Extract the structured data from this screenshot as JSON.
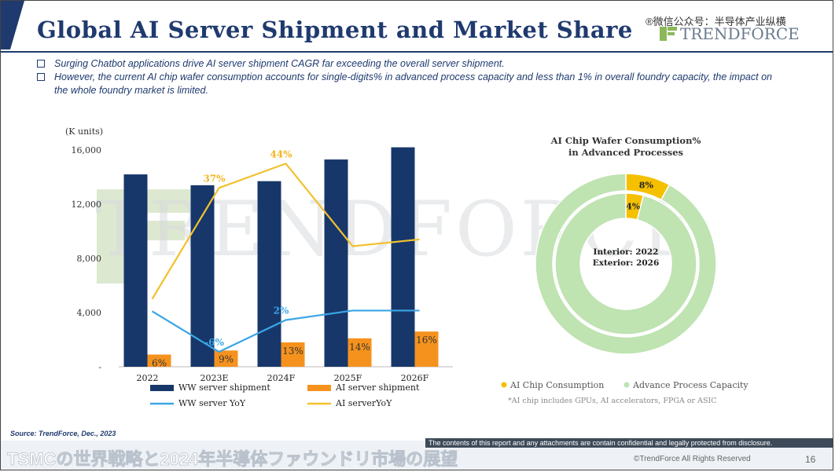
{
  "header": {
    "title": "Global AI Server Shipment and Market Share",
    "wechat_tag": "®微信公众号：半导体产业纵横",
    "logo_text": "TRENDFORCE"
  },
  "bullets": [
    "Surging Chatbot applications drive AI server shipment CAGR far exceeding the overall server shipment.",
    "However, the current AI chip wafer consumption accounts for single-digits% in advanced process capacity and less than 1% in overall foundry capacity, the impact on the whole foundry market is limited."
  ],
  "watermark": "TRENDFORCE",
  "chart_data": [
    {
      "type": "bar",
      "unit_label": "(K units)",
      "categories": [
        "2022",
        "2023E",
        "2024F",
        "2025F",
        "2026F"
      ],
      "ylim": [
        0,
        16000
      ],
      "yticks": [
        "16,000",
        "12,000",
        "8,000",
        "4,000",
        "-"
      ],
      "ytick_values": [
        16000,
        12000,
        8000,
        4000,
        0
      ],
      "series": [
        {
          "name": "WW server shipment",
          "kind": "bar",
          "color": "#17376b",
          "values": [
            14200,
            13400,
            13700,
            15300,
            16200
          ]
        },
        {
          "name": "AI server shipment",
          "kind": "bar",
          "color": "#f5921e",
          "values": [
            900,
            1200,
            1800,
            2100,
            2600
          ],
          "labels": [
            "6%",
            "9%",
            "13%",
            "14%",
            "16%"
          ]
        },
        {
          "name": "WW server YoY",
          "kind": "line",
          "color": "#3aa6e6",
          "values": [
            4100,
            1100,
            3450,
            4150,
            4150
          ],
          "labels": [
            "",
            "-6%",
            "2%",
            "",
            ""
          ]
        },
        {
          "name": "AI serverYoY",
          "kind": "line",
          "color": "#f2c12e",
          "values": [
            5000,
            13200,
            15000,
            8900,
            9400
          ],
          "labels": [
            "",
            "37%",
            "44%",
            "",
            ""
          ]
        }
      ]
    },
    {
      "type": "pie",
      "title_lines": [
        "AI Chip Wafer Consumption%",
        "in Advanced Processes"
      ],
      "center_text": [
        "Interior: 2022",
        "Exterior: 2026"
      ],
      "rings": [
        {
          "name": "Interior: 2022",
          "values": [
            4,
            96
          ],
          "labels": [
            "4%",
            ""
          ]
        },
        {
          "name": "Exterior: 2026",
          "values": [
            8,
            92
          ],
          "labels": [
            "8%",
            ""
          ]
        }
      ],
      "legend": [
        {
          "name": "AI Chip Consumption",
          "color": "#f5c000"
        },
        {
          "name": "Advance Process Capacity",
          "color": "#bfe3b1"
        }
      ],
      "note": "*AI chip includes GPUs, AI accelerators, FPGA or ASIC"
    }
  ],
  "footer": {
    "source": "Source: TrendForce, Dec., 2023",
    "title": "TSMCの世界戦略と2024年半導体ファウンドリ市場の展望",
    "confidential": "The contents of this report and any attachments are contain confidential and legally protected from disclosure.",
    "copyright": "©TrendForce All Rights Reserved",
    "page": "16"
  }
}
